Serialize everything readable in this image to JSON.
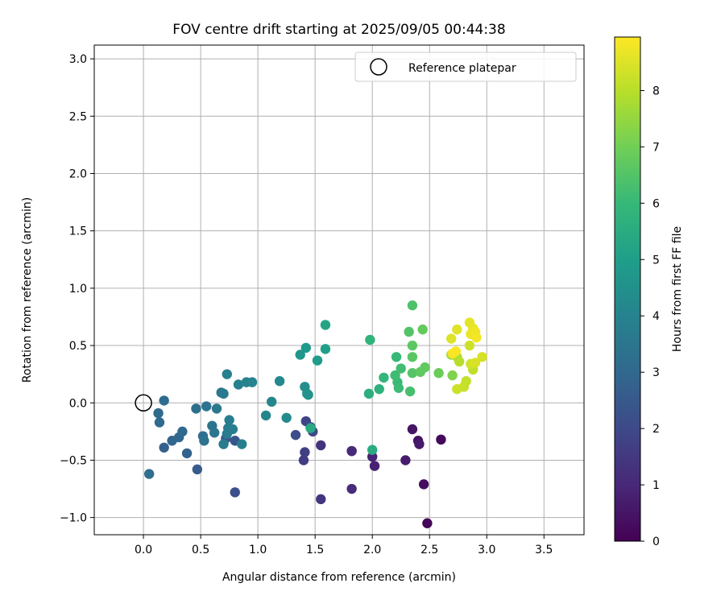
{
  "chart_data": {
    "type": "scatter",
    "title": "FOV centre drift starting at 2025/09/05 00:44:38",
    "xlabel": "Angular distance from reference (arcmin)",
    "ylabel": "Rotation from reference (arcmin)",
    "xlim": [
      -0.43,
      3.85
    ],
    "ylim": [
      -1.15,
      3.12
    ],
    "xticks": [
      "0.0",
      "0.5",
      "1.0",
      "1.5",
      "2.0",
      "2.5",
      "3.0",
      "3.5"
    ],
    "yticks": [
      "−1.0",
      "−0.5",
      "0.0",
      "0.5",
      "1.0",
      "1.5",
      "2.0",
      "2.5",
      "3.0"
    ],
    "grid": true,
    "legend": {
      "placement": "top-right",
      "entries": [
        "Reference platepar"
      ]
    },
    "reference_point": {
      "x": 0.0,
      "y": 0.0,
      "marker": "hollow-circle"
    },
    "colorbar": {
      "label": "Hours from first FF file",
      "colormap": "viridis",
      "range": [
        0,
        8.95
      ],
      "ticks": [
        "0",
        "1",
        "2",
        "3",
        "4",
        "5",
        "6",
        "7",
        "8"
      ]
    },
    "points": [
      {
        "x": 2.48,
        "y": -1.05,
        "t": 0.1
      },
      {
        "x": 2.6,
        "y": -0.32,
        "t": 0.2
      },
      {
        "x": 2.45,
        "y": -0.71,
        "t": 0.3
      },
      {
        "x": 2.4,
        "y": -0.33,
        "t": 0.4
      },
      {
        "x": 2.35,
        "y": -0.23,
        "t": 0.5
      },
      {
        "x": 2.41,
        "y": -0.36,
        "t": 0.6
      },
      {
        "x": 2.29,
        "y": -0.5,
        "t": 0.7
      },
      {
        "x": 2.02,
        "y": -0.55,
        "t": 0.8
      },
      {
        "x": 2.0,
        "y": -0.47,
        "t": 0.9
      },
      {
        "x": 1.82,
        "y": -0.42,
        "t": 1.0
      },
      {
        "x": 1.82,
        "y": -0.42,
        "t": 1.05
      },
      {
        "x": 1.82,
        "y": -0.75,
        "t": 1.1
      },
      {
        "x": 1.55,
        "y": -0.37,
        "t": 1.3
      },
      {
        "x": 1.55,
        "y": -0.84,
        "t": 1.4
      },
      {
        "x": 1.4,
        "y": -0.5,
        "t": 1.6
      },
      {
        "x": 1.41,
        "y": -0.43,
        "t": 1.7
      },
      {
        "x": 1.42,
        "y": -0.16,
        "t": 1.8
      },
      {
        "x": 1.48,
        "y": -0.25,
        "t": 1.9
      },
      {
        "x": 1.46,
        "y": -0.21,
        "t": 2.0
      },
      {
        "x": 1.33,
        "y": -0.28,
        "t": 2.1
      },
      {
        "x": 0.8,
        "y": -0.78,
        "t": 2.2
      },
      {
        "x": 0.8,
        "y": -0.33,
        "t": 2.4
      },
      {
        "x": 0.72,
        "y": -0.31,
        "t": 2.5
      },
      {
        "x": 0.47,
        "y": -0.58,
        "t": 2.6
      },
      {
        "x": 0.18,
        "y": -0.39,
        "t": 2.7
      },
      {
        "x": 0.38,
        "y": -0.44,
        "t": 2.8
      },
      {
        "x": 0.25,
        "y": -0.33,
        "t": 2.9
      },
      {
        "x": 0.31,
        "y": -0.3,
        "t": 2.95
      },
      {
        "x": 0.34,
        "y": -0.25,
        "t": 3.0
      },
      {
        "x": 0.14,
        "y": -0.17,
        "t": 3.05
      },
      {
        "x": 0.13,
        "y": -0.09,
        "t": 3.1
      },
      {
        "x": 0.18,
        "y": 0.02,
        "t": 3.15
      },
      {
        "x": 0.05,
        "y": -0.62,
        "t": 3.2
      },
      {
        "x": 0.46,
        "y": -0.05,
        "t": 3.25
      },
      {
        "x": 0.52,
        "y": -0.29,
        "t": 3.3
      },
      {
        "x": 0.53,
        "y": -0.33,
        "t": 3.35
      },
      {
        "x": 0.55,
        "y": -0.03,
        "t": 3.4
      },
      {
        "x": 0.6,
        "y": -0.2,
        "t": 3.45
      },
      {
        "x": 0.62,
        "y": -0.26,
        "t": 3.5
      },
      {
        "x": 0.64,
        "y": -0.05,
        "t": 3.55
      },
      {
        "x": 0.68,
        "y": 0.09,
        "t": 3.6
      },
      {
        "x": 0.7,
        "y": 0.08,
        "t": 3.65
      },
      {
        "x": 0.7,
        "y": -0.36,
        "t": 3.7
      },
      {
        "x": 0.73,
        "y": -0.27,
        "t": 3.72
      },
      {
        "x": 0.74,
        "y": -0.22,
        "t": 3.75
      },
      {
        "x": 0.75,
        "y": -0.15,
        "t": 3.78
      },
      {
        "x": 0.78,
        "y": -0.23,
        "t": 3.8
      },
      {
        "x": 0.86,
        "y": -0.36,
        "t": 3.85
      },
      {
        "x": 0.73,
        "y": 0.25,
        "t": 3.9
      },
      {
        "x": 0.83,
        "y": 0.16,
        "t": 3.95
      },
      {
        "x": 0.9,
        "y": 0.18,
        "t": 4.0
      },
      {
        "x": 0.95,
        "y": 0.18,
        "t": 4.05
      },
      {
        "x": 1.07,
        "y": -0.11,
        "t": 4.1
      },
      {
        "x": 1.12,
        "y": 0.01,
        "t": 4.15
      },
      {
        "x": 1.19,
        "y": 0.19,
        "t": 4.2
      },
      {
        "x": 1.25,
        "y": -0.13,
        "t": 4.3
      },
      {
        "x": 1.41,
        "y": 0.14,
        "t": 4.4
      },
      {
        "x": 1.43,
        "y": 0.08,
        "t": 4.5
      },
      {
        "x": 1.44,
        "y": 0.07,
        "t": 4.55
      },
      {
        "x": 1.37,
        "y": 0.42,
        "t": 4.7
      },
      {
        "x": 1.42,
        "y": 0.48,
        "t": 4.8
      },
      {
        "x": 1.52,
        "y": 0.37,
        "t": 4.9
      },
      {
        "x": 1.59,
        "y": 0.47,
        "t": 5.0
      },
      {
        "x": 1.59,
        "y": 0.68,
        "t": 5.2
      },
      {
        "x": 1.46,
        "y": -0.22,
        "t": 5.4
      },
      {
        "x": 2.0,
        "y": -0.41,
        "t": 5.5
      },
      {
        "x": 1.97,
        "y": 0.08,
        "t": 5.6
      },
      {
        "x": 2.06,
        "y": 0.12,
        "t": 5.7
      },
      {
        "x": 1.98,
        "y": 0.55,
        "t": 5.8
      },
      {
        "x": 2.1,
        "y": 0.22,
        "t": 5.9
      },
      {
        "x": 2.21,
        "y": 0.4,
        "t": 6.0
      },
      {
        "x": 2.22,
        "y": 0.18,
        "t": 6.05
      },
      {
        "x": 2.23,
        "y": 0.13,
        "t": 6.1
      },
      {
        "x": 2.2,
        "y": 0.24,
        "t": 6.15
      },
      {
        "x": 2.25,
        "y": 0.3,
        "t": 6.2
      },
      {
        "x": 2.33,
        "y": 0.1,
        "t": 6.3
      },
      {
        "x": 2.35,
        "y": 0.85,
        "t": 6.4
      },
      {
        "x": 2.32,
        "y": 0.62,
        "t": 6.5
      },
      {
        "x": 2.35,
        "y": 0.26,
        "t": 6.55
      },
      {
        "x": 2.35,
        "y": 0.4,
        "t": 6.6
      },
      {
        "x": 2.35,
        "y": 0.5,
        "t": 6.65
      },
      {
        "x": 2.42,
        "y": 0.27,
        "t": 6.7
      },
      {
        "x": 2.46,
        "y": 0.31,
        "t": 6.75
      },
      {
        "x": 2.44,
        "y": 0.64,
        "t": 6.8
      },
      {
        "x": 2.58,
        "y": 0.26,
        "t": 6.9
      },
      {
        "x": 2.7,
        "y": 0.24,
        "t": 7.2
      },
      {
        "x": 2.69,
        "y": 0.42,
        "t": 7.6
      },
      {
        "x": 2.74,
        "y": 0.4,
        "t": 7.8
      },
      {
        "x": 2.76,
        "y": 0.36,
        "t": 8.0
      },
      {
        "x": 2.88,
        "y": 0.29,
        "t": 8.1
      },
      {
        "x": 2.82,
        "y": 0.19,
        "t": 8.15
      },
      {
        "x": 2.8,
        "y": 0.14,
        "t": 8.2
      },
      {
        "x": 2.74,
        "y": 0.12,
        "t": 8.25
      },
      {
        "x": 2.85,
        "y": 0.5,
        "t": 8.3
      },
      {
        "x": 2.86,
        "y": 0.34,
        "t": 8.35
      },
      {
        "x": 2.96,
        "y": 0.4,
        "t": 8.4
      },
      {
        "x": 2.9,
        "y": 0.35,
        "t": 8.45
      },
      {
        "x": 2.69,
        "y": 0.56,
        "t": 8.5
      },
      {
        "x": 2.74,
        "y": 0.64,
        "t": 8.55
      },
      {
        "x": 2.85,
        "y": 0.7,
        "t": 8.6
      },
      {
        "x": 2.88,
        "y": 0.65,
        "t": 8.65
      },
      {
        "x": 2.86,
        "y": 0.6,
        "t": 8.7
      },
      {
        "x": 2.9,
        "y": 0.62,
        "t": 8.75
      },
      {
        "x": 2.91,
        "y": 0.57,
        "t": 8.8
      },
      {
        "x": 2.7,
        "y": 0.43,
        "t": 8.85
      },
      {
        "x": 2.73,
        "y": 0.45,
        "t": 8.9
      }
    ]
  }
}
